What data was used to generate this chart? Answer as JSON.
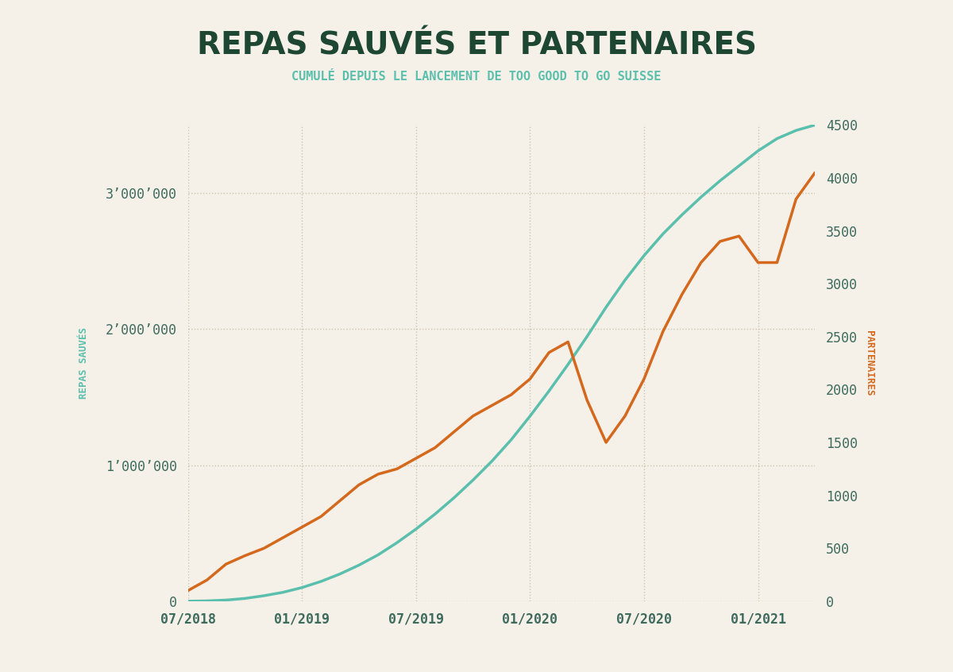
{
  "title": "REPAS SAUVÉS ET PARTENAIRES",
  "subtitle": "CUMULÉ DEPUIS LE LANCEMENT DE TOO GOOD TO GO SUISSE",
  "ylabel_left": "REPAS SAUVÉS",
  "ylabel_right": "PARTENAIRES",
  "background_color": "#F5F0E8",
  "title_color": "#1D4732",
  "subtitle_color": "#5BBFAD",
  "left_axis_color": "#5BBFAD",
  "right_axis_color": "#D4691E",
  "line_repas_color": "#5BBFAD",
  "line_partenaires_color": "#D4691E",
  "grid_color": "#C8C0A8",
  "tick_color": "#3D6B5E",
  "ylim_left": [
    0,
    3500000
  ],
  "ylim_right": [
    0,
    4500
  ],
  "xlim": [
    0,
    33
  ],
  "repas_x": [
    0,
    1,
    2,
    3,
    4,
    5,
    6,
    7,
    8,
    9,
    10,
    11,
    12,
    13,
    14,
    15,
    16,
    17,
    18,
    19,
    20,
    21,
    22,
    23,
    24,
    25,
    26,
    27,
    28,
    29,
    30,
    31,
    32,
    33
  ],
  "repas_y": [
    0,
    2000,
    8000,
    20000,
    40000,
    65000,
    100000,
    145000,
    200000,
    265000,
    340000,
    430000,
    530000,
    640000,
    760000,
    890000,
    1030000,
    1185000,
    1360000,
    1545000,
    1740000,
    1945000,
    2160000,
    2360000,
    2540000,
    2700000,
    2840000,
    2970000,
    3090000,
    3200000,
    3310000,
    3400000,
    3460000,
    3500000
  ],
  "partenaires_x": [
    0,
    1,
    2,
    3,
    4,
    5,
    6,
    7,
    8,
    9,
    10,
    11,
    12,
    13,
    14,
    15,
    16,
    17,
    18,
    19,
    20,
    21,
    22,
    23,
    24,
    25,
    26,
    27,
    28,
    29,
    30,
    31,
    32,
    33
  ],
  "partenaires_y": [
    100,
    200,
    350,
    430,
    500,
    600,
    700,
    800,
    950,
    1100,
    1200,
    1250,
    1350,
    1450,
    1600,
    1750,
    1850,
    1950,
    2100,
    2350,
    2450,
    1900,
    1500,
    1750,
    2100,
    2550,
    2900,
    3200,
    3400,
    3450,
    3200,
    3200,
    3800,
    4050
  ],
  "xtick_positions": [
    0,
    6,
    12,
    18,
    24,
    30
  ],
  "xtick_labels": [
    "07/2018",
    "01/2019",
    "07/2019",
    "01/2020",
    "07/2020",
    "01/2021"
  ],
  "yticks_left": [
    0,
    1000000,
    2000000,
    3000000
  ],
  "ytick_labels_left": [
    "0",
    "1’000’000",
    "2’000’000",
    "3’000’000"
  ],
  "yticks_right": [
    0,
    500,
    1000,
    1500,
    2000,
    2500,
    3000,
    3500,
    4000,
    4500
  ],
  "ytick_labels_right": [
    "0",
    "500",
    "1000",
    "1500",
    "2000",
    "2500",
    "3000",
    "3500",
    "4000",
    "4500"
  ]
}
